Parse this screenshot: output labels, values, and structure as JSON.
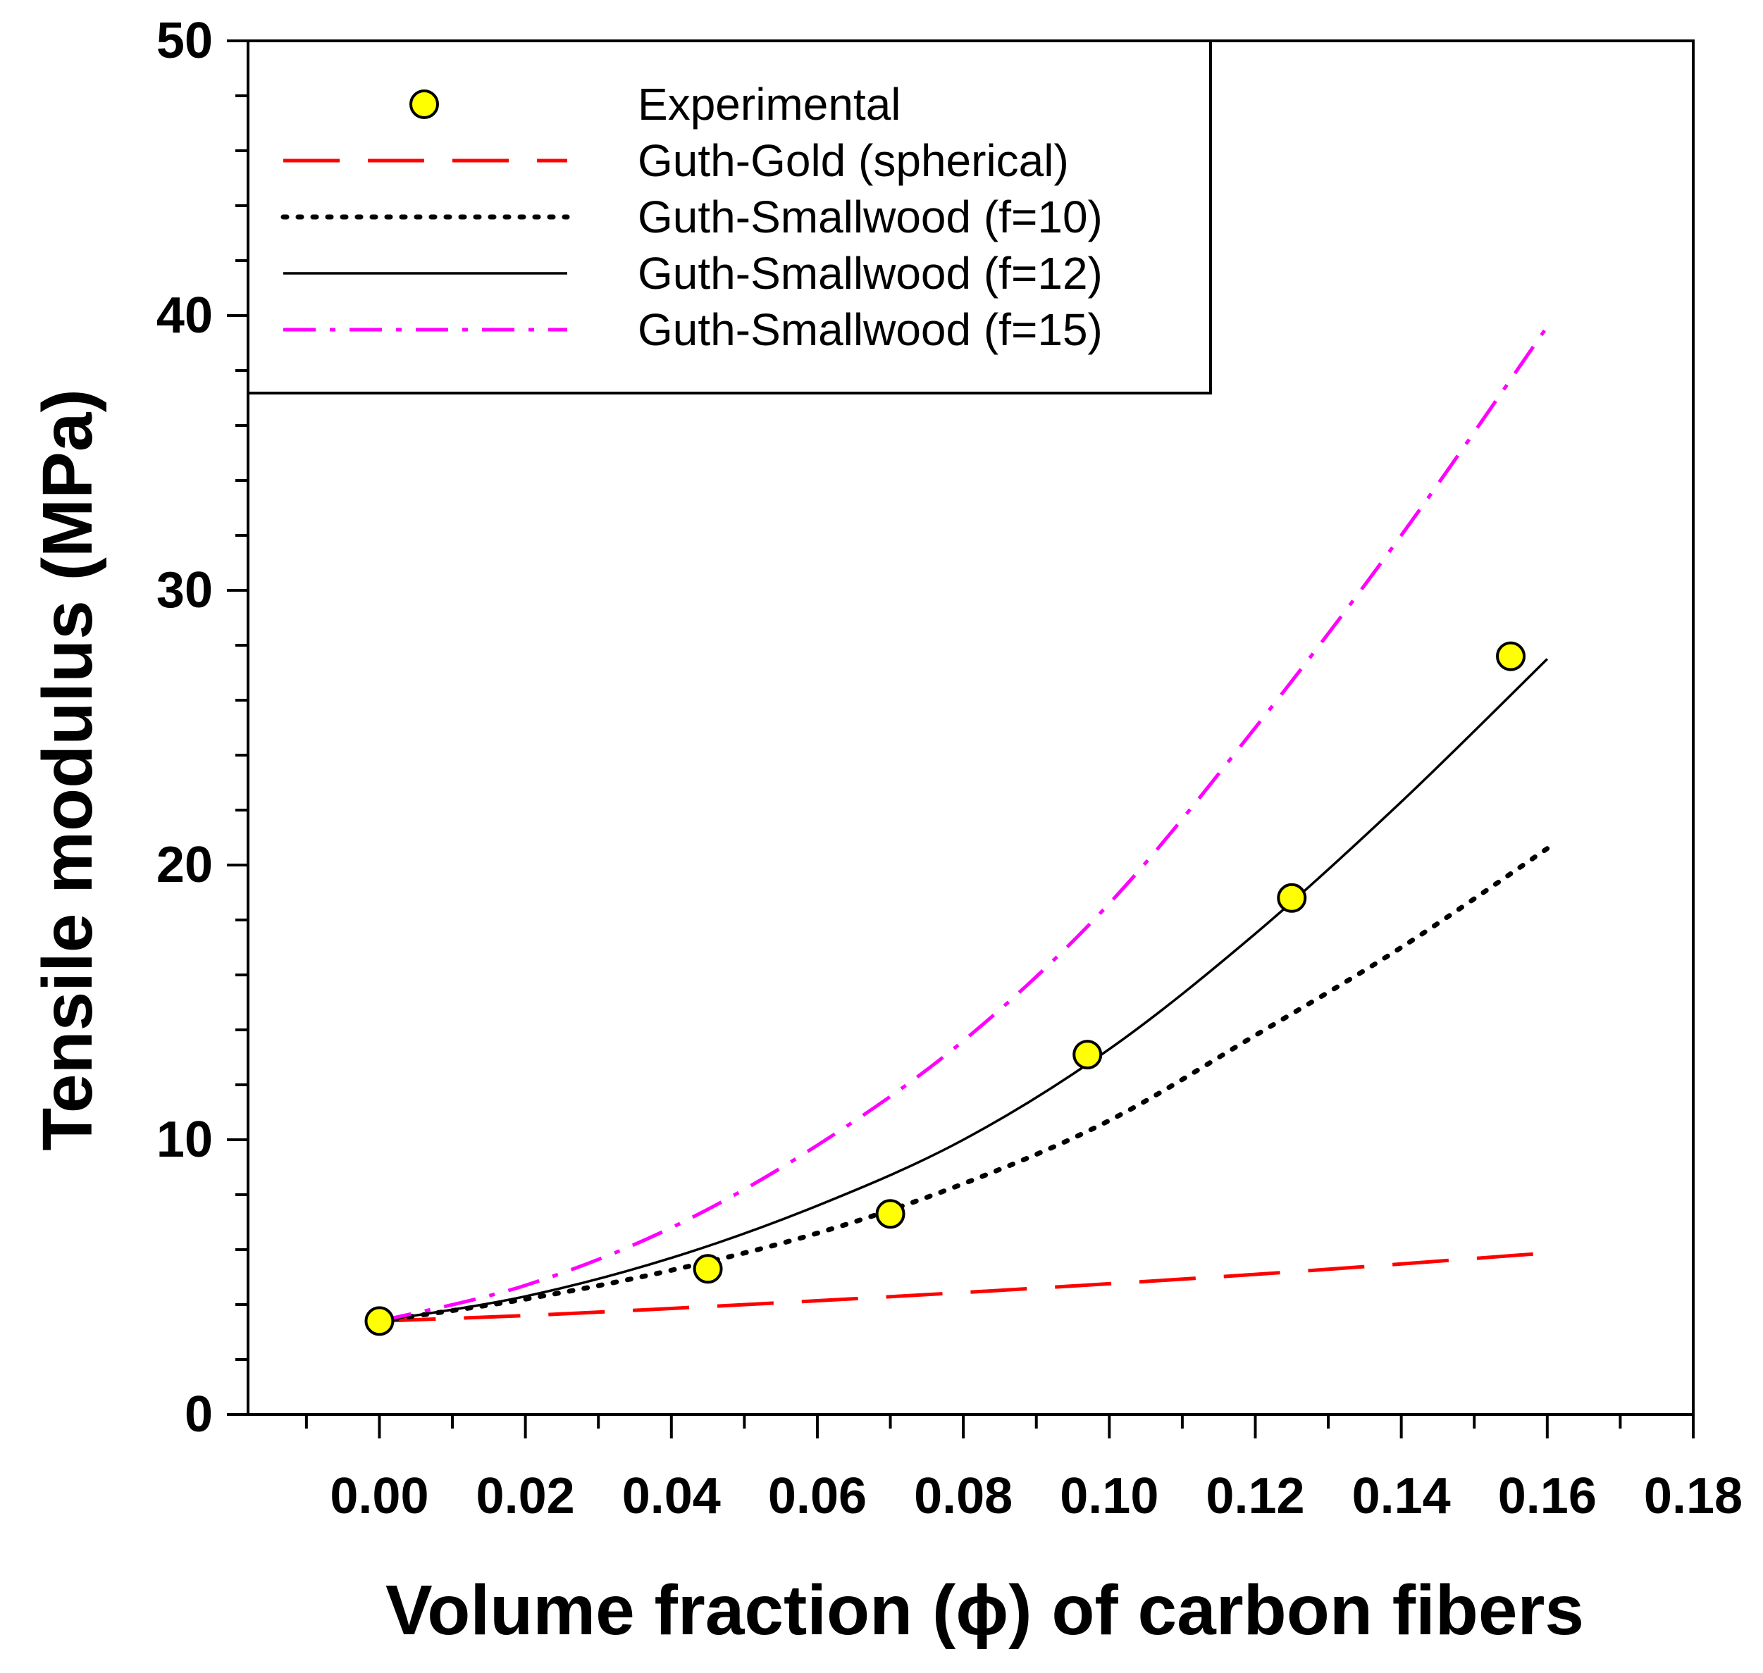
{
  "chart_data": {
    "type": "scatter",
    "title": "",
    "xlabel": "Volume fraction (ϕ) of carbon fibers",
    "ylabel": "Tensile modulus (MPa)",
    "xlim": [
      -0.018,
      0.18
    ],
    "ylim": [
      0,
      50
    ],
    "x_ticks": [
      "0.00",
      "0.02",
      "0.04",
      "0.06",
      "0.08",
      "0.10",
      "0.12",
      "0.14",
      "0.16",
      "0.18"
    ],
    "x_tick_values": [
      0,
      0.02,
      0.04,
      0.06,
      0.08,
      0.1,
      0.12,
      0.14,
      0.16,
      0.18
    ],
    "y_ticks": [
      "0",
      "10",
      "20",
      "30",
      "40",
      "50"
    ],
    "y_tick_values": [
      0,
      10,
      20,
      30,
      40,
      50
    ],
    "grid": false,
    "legend_position": "top-left",
    "series": [
      {
        "name": "Experimental",
        "kind": "points",
        "color": "#ffff00",
        "edge_color": "#000000",
        "x": [
          0.0,
          0.045,
          0.07,
          0.097,
          0.125,
          0.155
        ],
        "y": [
          3.4,
          5.3,
          7.3,
          13.1,
          18.8,
          27.6
        ]
      },
      {
        "name": "Guth-Gold (spherical)",
        "kind": "line",
        "style": "dashed",
        "color": "#ff0000",
        "x": [
          0.0,
          0.02,
          0.04,
          0.06,
          0.08,
          0.1,
          0.12,
          0.14,
          0.16
        ],
        "y": [
          3.4,
          3.6,
          3.86,
          4.14,
          4.44,
          4.76,
          5.1,
          5.48,
          5.88
        ]
      },
      {
        "name": "Guth-Smallwood (f=10)",
        "kind": "line",
        "style": "dotted",
        "color": "#000000",
        "x": [
          0.0,
          0.02,
          0.04,
          0.06,
          0.08,
          0.1,
          0.12,
          0.14,
          0.16
        ],
        "y": [
          3.4,
          4.2,
          5.25,
          6.6,
          8.4,
          10.7,
          13.8,
          17.0,
          20.6
        ]
      },
      {
        "name": "Guth-Smallwood (f=12)",
        "kind": "line",
        "style": "solid",
        "color": "#000000",
        "x": [
          0.0,
          0.02,
          0.04,
          0.06,
          0.08,
          0.1,
          0.12,
          0.14,
          0.16
        ],
        "y": [
          3.4,
          4.3,
          5.7,
          7.6,
          10.0,
          13.3,
          17.5,
          22.3,
          27.5
        ]
      },
      {
        "name": "Guth-Smallwood (f=15)",
        "kind": "line",
        "style": "dashdot",
        "color": "#ff00ff",
        "x": [
          0.0,
          0.02,
          0.04,
          0.06,
          0.08,
          0.1,
          0.12,
          0.14,
          0.16
        ],
        "y": [
          3.4,
          4.7,
          6.8,
          9.8,
          13.6,
          18.6,
          25.0,
          32.0,
          39.6
        ]
      }
    ]
  }
}
